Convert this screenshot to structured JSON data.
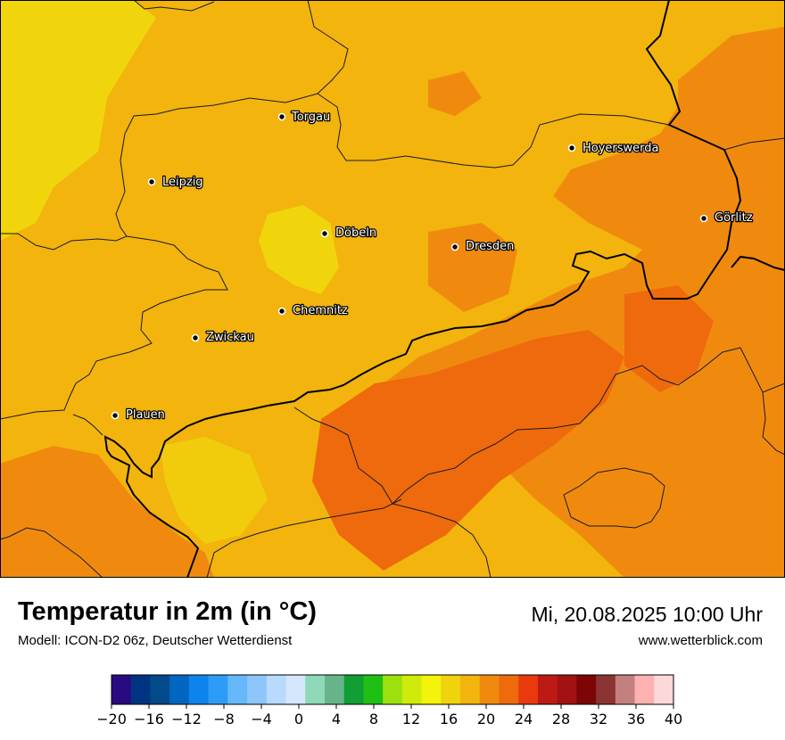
{
  "map": {
    "cities": [
      {
        "name": "Torgau"
      },
      {
        "name": "Hoyerswerda"
      },
      {
        "name": "Leipzig"
      },
      {
        "name": "Görlitz"
      },
      {
        "name": "Döbeln"
      },
      {
        "name": "Dresden"
      },
      {
        "name": "Chemnitz"
      },
      {
        "name": "Zwickau"
      },
      {
        "name": "Plauen"
      }
    ]
  },
  "footer": {
    "title": "Temperatur in 2m (in °C)",
    "model": "Modell: ICON-D2 06z, Deutscher Wetterdienst",
    "datetime": "Mi, 20.08.2025 10:00 Uhr",
    "website": "www.wetterblick.com"
  },
  "legend": {
    "colors": [
      "#2a0a80",
      "#003380",
      "#024a8a",
      "#0066c2",
      "#0d84ed",
      "#2e9cf7",
      "#66b8fa",
      "#8cc6fb",
      "#b8dafc",
      "#d4e7fd",
      "#8fd9b8",
      "#68b48a",
      "#119e35",
      "#1fbf13",
      "#9ce00d",
      "#cfeb0a",
      "#f3f30b",
      "#f0d20d",
      "#f2b40d",
      "#f08a0f",
      "#ef6a0c",
      "#e93a0d",
      "#bd1a16",
      "#a31212",
      "#7d0505",
      "#8c3333",
      "#c47f7f",
      "#fdb1b1",
      "#fdd8d8"
    ],
    "ticks": [
      "−20",
      "−16",
      "−12",
      "−8",
      "−4",
      "0",
      "4",
      "8",
      "12",
      "16",
      "20",
      "24",
      "28",
      "32",
      "36",
      "40"
    ]
  }
}
